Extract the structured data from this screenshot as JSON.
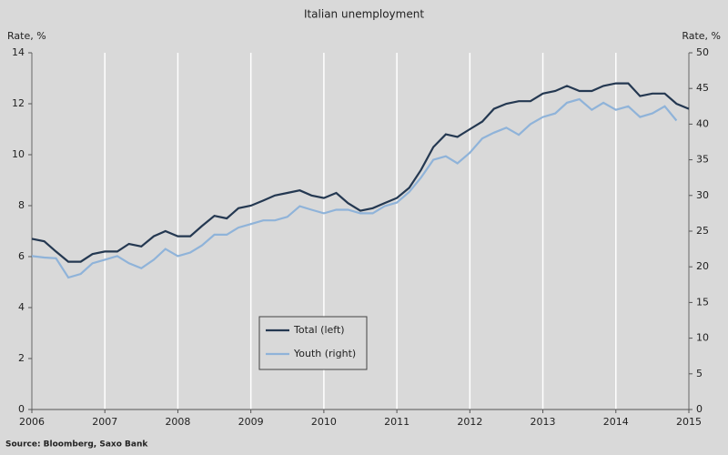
{
  "chart_data": {
    "type": "line",
    "title": "Italian unemployment",
    "ylabel": "Rate, %",
    "y2label": "Rate, %",
    "source": "Source: Bloomberg, Saxo Bank",
    "x": [
      2006,
      2006.17,
      2006.33,
      2006.5,
      2006.67,
      2006.83,
      2007,
      2007.17,
      2007.33,
      2007.5,
      2007.67,
      2007.83,
      2008,
      2008.17,
      2008.33,
      2008.5,
      2008.67,
      2008.83,
      2009,
      2009.17,
      2009.33,
      2009.5,
      2009.67,
      2009.83,
      2010,
      2010.17,
      2010.33,
      2010.5,
      2010.67,
      2010.83,
      2011,
      2011.17,
      2011.33,
      2011.5,
      2011.67,
      2011.83,
      2012,
      2012.17,
      2012.33,
      2012.5,
      2012.67,
      2012.83,
      2013,
      2013.17,
      2013.33,
      2013.5,
      2013.67,
      2013.83,
      2014,
      2014.17,
      2014.33,
      2014.5,
      2014.67,
      2014.83,
      2015
    ],
    "series": [
      {
        "name": "Total (left)",
        "color": "#243851",
        "values": [
          6.7,
          6.6,
          6.2,
          5.8,
          5.8,
          6.1,
          6.2,
          6.2,
          6.5,
          6.4,
          6.8,
          7.0,
          6.8,
          6.8,
          7.2,
          7.6,
          7.5,
          7.9,
          8.0,
          8.2,
          8.4,
          8.5,
          8.6,
          8.4,
          8.3,
          8.5,
          8.1,
          7.8,
          7.9,
          8.1,
          8.3,
          8.7,
          9.4,
          10.3,
          10.8,
          10.7,
          11.0,
          11.3,
          11.8,
          12.0,
          12.1,
          12.1,
          12.4,
          12.5,
          12.7,
          12.5,
          12.5,
          12.7,
          12.8,
          12.8,
          12.3,
          12.4,
          12.4,
          12.0,
          11.8
        ]
      },
      {
        "name": "Youth (right)",
        "color": "#8fb3d9",
        "axis": "y2",
        "values": [
          21.5,
          21.3,
          21.2,
          18.5,
          19,
          20.5,
          21,
          21.5,
          20.5,
          19.8,
          21,
          22.5,
          21.5,
          22,
          23,
          24.5,
          24.5,
          25.5,
          26,
          26.5,
          26.5,
          27,
          28.5,
          28,
          27.5,
          28,
          28,
          27.5,
          27.5,
          28.5,
          29,
          30.5,
          32.5,
          35,
          35.5,
          34.5,
          36,
          38,
          38.8,
          39.5,
          38.5,
          40,
          41,
          41.5,
          43,
          43.5,
          42,
          43,
          42,
          42.5,
          41,
          41.5,
          42.5,
          40.5,
          null
        ]
      }
    ],
    "xlim": [
      2006,
      2015
    ],
    "xticks": [
      2006,
      2007,
      2008,
      2009,
      2010,
      2011,
      2012,
      2013,
      2014,
      2015
    ],
    "ylim": [
      0,
      14
    ],
    "yticks": [
      0,
      2,
      4,
      6,
      8,
      10,
      12,
      14
    ],
    "y2lim": [
      0,
      50
    ],
    "y2ticks": [
      0,
      5,
      10,
      15,
      20,
      25,
      30,
      35,
      40,
      45,
      50
    ],
    "xgrid": true
  }
}
